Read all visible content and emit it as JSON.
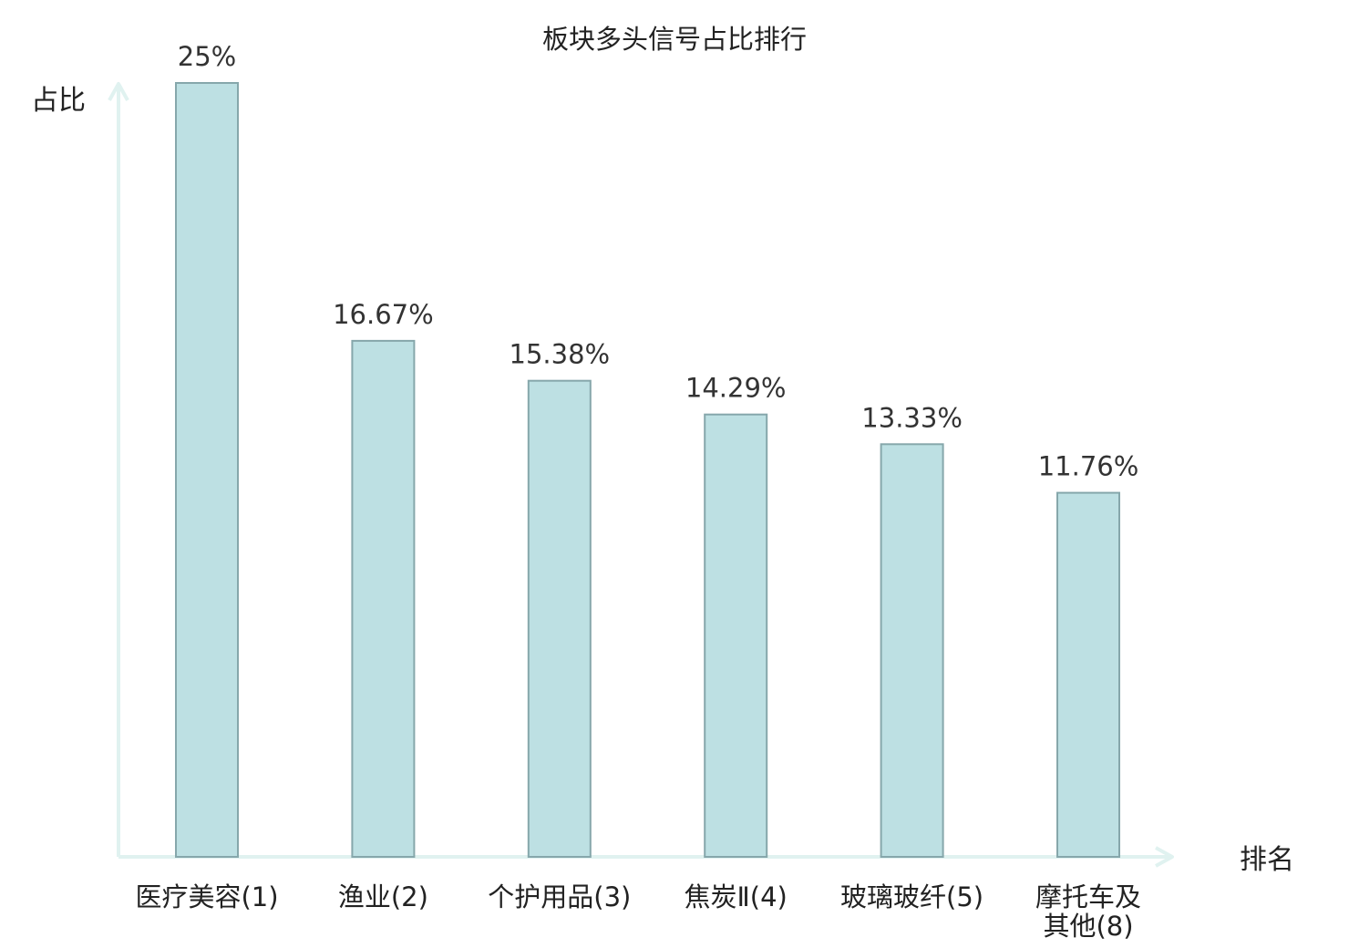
{
  "chart_data": {
    "type": "bar",
    "title": "板块多头信号占比排行",
    "ylabel": "占比",
    "xlabel": "排名",
    "categories": [
      {
        "lines": [
          "医疗美容(1)"
        ],
        "highlight": false
      },
      {
        "lines": [
          "渔业(2)"
        ],
        "highlight": false
      },
      {
        "lines": [
          "个护用品(3)"
        ],
        "highlight": false
      },
      {
        "lines": [
          "焦炭Ⅱ(4)"
        ],
        "highlight": false
      },
      {
        "lines": [
          "玻璃玻纤(5)"
        ],
        "highlight": false
      },
      {
        "lines": [
          "摩托车及",
          "其他(8)"
        ],
        "highlight": true
      }
    ],
    "values": [
      25,
      16.67,
      15.38,
      14.29,
      13.33,
      11.76
    ],
    "value_labels": [
      "25%",
      "16.67%",
      "15.38%",
      "14.29%",
      "13.33%",
      "11.76%"
    ],
    "ylim": [
      0,
      25
    ],
    "grid": false,
    "legend": "none",
    "colors": {
      "bar_fill": "#bde0e3",
      "bar_stroke": "#86a7ab",
      "axis": "#e0f2f0",
      "highlight_text": "#ee1111",
      "text": "#222222"
    }
  }
}
